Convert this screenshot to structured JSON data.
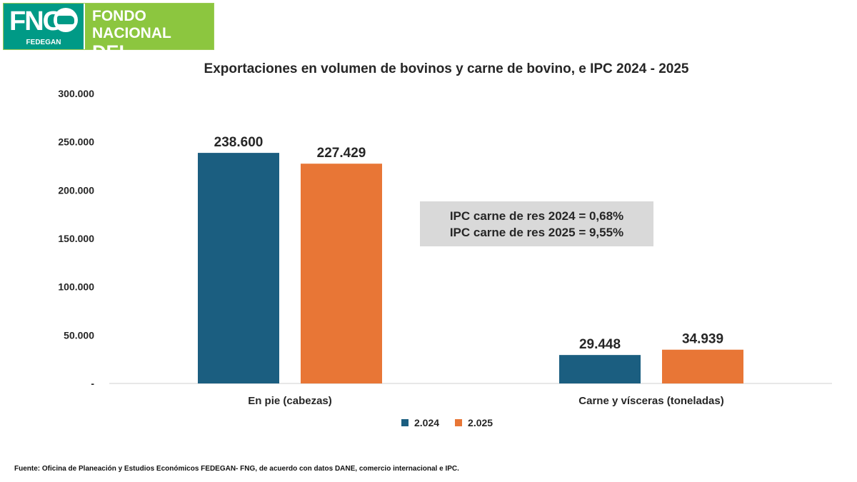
{
  "logo": {
    "mark": "FNG",
    "sub": "FEDEGAN",
    "line1": "FONDO NACIONAL",
    "line2": "DEL GANADO"
  },
  "colors": {
    "series_2024": "#1b5e80",
    "series_2025": "#e87636",
    "box": "#d9d9d9",
    "axis": "#d0d0d0",
    "logo_green": "#8cc63f",
    "logo_teal": "#009a86"
  },
  "annotation": {
    "line1": "IPC carne de res 2024 = 0,68%",
    "line2": "IPC carne de res 2025 = 9,55%"
  },
  "footer": "Fuente: Oficina de Planeación y Estudios Económicos FEDEGAN- FNG, de acuerdo con datos DANE, comercio internacional e IPC.",
  "chart_data": {
    "type": "bar",
    "title": "Exportaciones en volumen de bovinos y carne de bovino, e IPC 2024 - 2025",
    "categories": [
      "En pie (cabezas)",
      "Carne y vísceras (toneladas)"
    ],
    "series": [
      {
        "name": "2.024",
        "values": [
          238600,
          29448
        ],
        "labels": [
          "238.600",
          "29.448"
        ]
      },
      {
        "name": "2.025",
        "values": [
          227429,
          34939
        ],
        "labels": [
          "227.429",
          "34.939"
        ]
      }
    ],
    "yticks": [
      0,
      50000,
      100000,
      150000,
      200000,
      250000,
      300000
    ],
    "ytick_labels": [
      "-",
      "50.000",
      "100.000",
      "150.000",
      "200.000",
      "250.000",
      "300.000"
    ],
    "ylim": [
      0,
      300000
    ],
    "grid": false,
    "legend": "bottom"
  }
}
